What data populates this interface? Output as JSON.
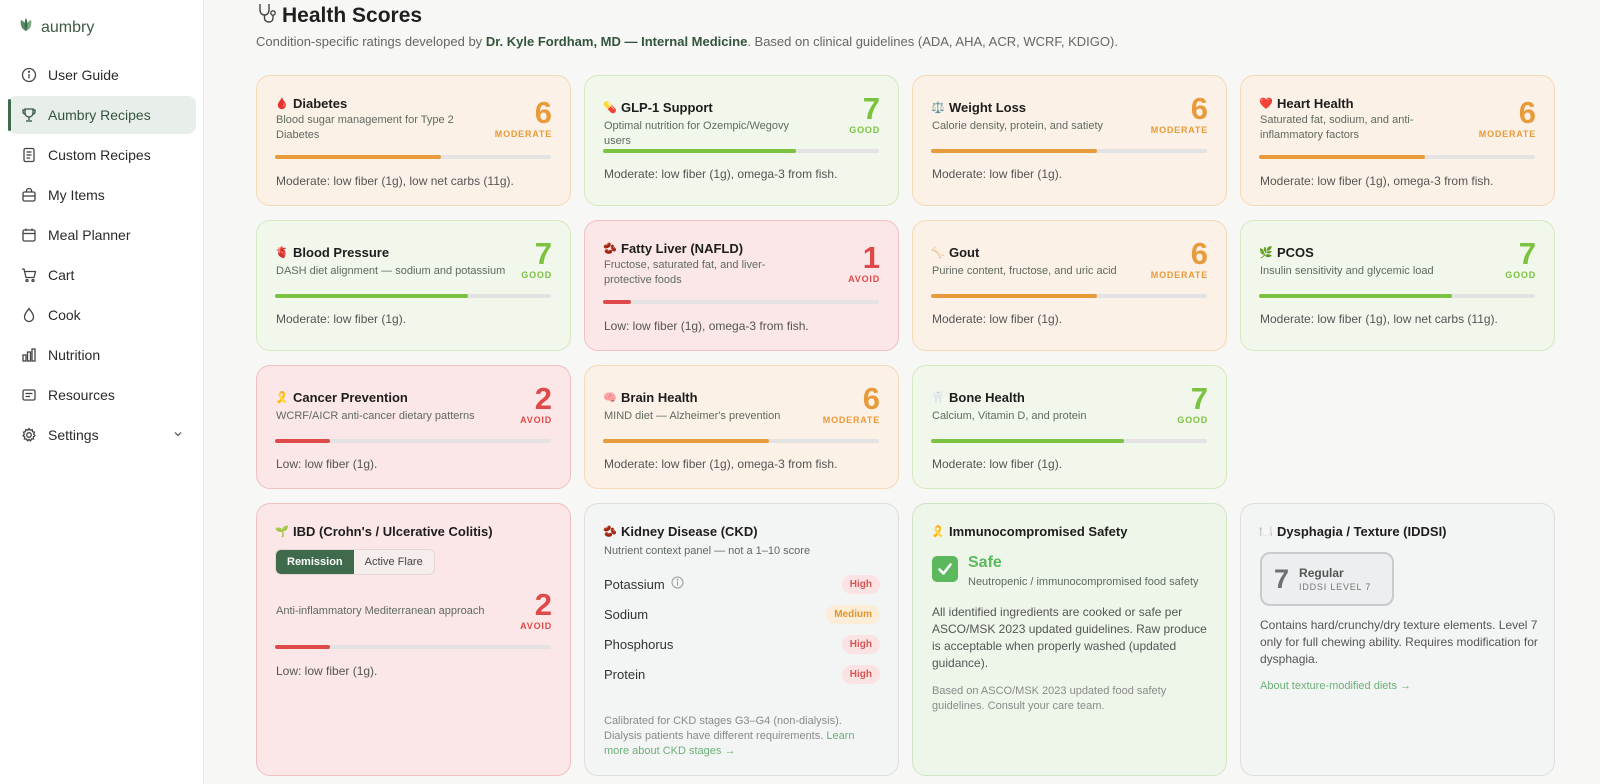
{
  "brand": {
    "name": "aumbry",
    "icon": "leaf-icon"
  },
  "sidebar": {
    "items": [
      {
        "label": "User Guide",
        "icon": "info-circle-icon"
      },
      {
        "label": "Aumbry Recipes",
        "icon": "trophy-icon"
      },
      {
        "label": "Custom Recipes",
        "icon": "document-icon"
      },
      {
        "label": "My Items",
        "icon": "basket-icon"
      },
      {
        "label": "Meal Planner",
        "icon": "calendar-icon"
      },
      {
        "label": "Cart",
        "icon": "cart-icon"
      },
      {
        "label": "Cook",
        "icon": "flame-icon"
      },
      {
        "label": "Nutrition",
        "icon": "bar-chart-icon"
      },
      {
        "label": "Resources",
        "icon": "book-icon"
      },
      {
        "label": "Settings",
        "icon": "gear-icon"
      }
    ],
    "active": "Aumbry Recipes"
  },
  "header": {
    "title": "Health Scores",
    "subtitle_prefix": "Condition-specific ratings developed by ",
    "subtitle_author": "Dr. Kyle Fordham, MD — Internal Medicine",
    "subtitle_suffix": ". Based on clinical guidelines (ADA, AHA, ACR, WCRF, KDIGO)."
  },
  "colors": {
    "moderate": "#e89b3a",
    "good": "#7cc241",
    "avoid": "#de4a4a",
    "safe": "#5cb85c",
    "brand": "#3f6b4c"
  },
  "cards": {
    "diabetes": {
      "emoji": "🩸",
      "title": "Diabetes",
      "desc": "Blood sugar management for Type 2 Diabetes",
      "score": "6",
      "rating": "MODERATE",
      "fill": 0.6,
      "note": "Moderate: low fiber (1g), low net carbs (11g)."
    },
    "glp1": {
      "emoji": "💊",
      "title": "GLP-1 Support",
      "desc": "Optimal nutrition for Ozempic/Wegovy users",
      "score": "7",
      "rating": "GOOD",
      "fill": 0.7,
      "note": "Moderate: low fiber (1g), omega-3 from fish."
    },
    "weight": {
      "emoji": "⚖️",
      "title": "Weight Loss",
      "desc": "Calorie density, protein, and satiety",
      "score": "6",
      "rating": "MODERATE",
      "fill": 0.6,
      "note": "Moderate: low fiber (1g)."
    },
    "heart": {
      "emoji": "❤️",
      "title": "Heart Health",
      "desc": "Saturated fat, sodium, and anti-inflammatory factors",
      "score": "6",
      "rating": "MODERATE",
      "fill": 0.6,
      "note": "Moderate: low fiber (1g), omega-3 from fish."
    },
    "bp": {
      "emoji": "🫀",
      "title": "Blood Pressure",
      "desc": "DASH diet alignment — sodium and potassium",
      "score": "7",
      "rating": "GOOD",
      "fill": 0.7,
      "note": "Moderate: low fiber (1g)."
    },
    "liver": {
      "emoji": "🫘",
      "title": "Fatty Liver (NAFLD)",
      "desc": "Fructose, saturated fat, and liver-protective foods",
      "score": "1",
      "rating": "AVOID",
      "fill": 0.1,
      "note": "Low: low fiber (1g), omega-3 from fish."
    },
    "gout": {
      "emoji": "🦴",
      "title": "Gout",
      "desc": "Purine content, fructose, and uric acid",
      "score": "6",
      "rating": "MODERATE",
      "fill": 0.6,
      "note": "Moderate: low fiber (1g)."
    },
    "pcos": {
      "emoji": "🌿",
      "title": "PCOS",
      "desc": "Insulin sensitivity and glycemic load",
      "score": "7",
      "rating": "GOOD",
      "fill": 0.7,
      "note": "Moderate: low fiber (1g), low net carbs (11g)."
    },
    "cancer": {
      "emoji": "🎗️",
      "title": "Cancer Prevention",
      "desc": "WCRF/AICR anti-cancer dietary patterns",
      "score": "2",
      "rating": "AVOID",
      "fill": 0.2,
      "note": "Low: low fiber (1g)."
    },
    "brain": {
      "emoji": "🧠",
      "title": "Brain Health",
      "desc": "MIND diet — Alzheimer's prevention",
      "score": "6",
      "rating": "MODERATE",
      "fill": 0.6,
      "note": "Moderate: low fiber (1g), omega-3 from fish."
    },
    "bone": {
      "emoji": "🦷",
      "title": "Bone Health",
      "desc": "Calcium, Vitamin D, and protein",
      "score": "7",
      "rating": "GOOD",
      "fill": 0.7,
      "note": "Moderate: low fiber (1g)."
    },
    "ibd": {
      "emoji": "🌱",
      "title": "IBD (Crohn's / Ulcerative Colitis)",
      "toggle_on": "Remission",
      "toggle_off": "Active Flare",
      "desc": "Anti-inflammatory Mediterranean approach",
      "score": "2",
      "rating": "AVOID",
      "fill": 0.2,
      "note": "Low: low fiber (1g)."
    }
  },
  "ckd": {
    "emoji": "🫘",
    "title": "Kidney Disease (CKD)",
    "desc": "Nutrient context panel — not a 1–10 score",
    "rows": [
      {
        "name": "Potassium",
        "level": "High"
      },
      {
        "name": "Sodium",
        "level": "Medium"
      },
      {
        "name": "Phosphorus",
        "level": "High"
      },
      {
        "name": "Protein",
        "level": "High"
      }
    ],
    "footnote": "Calibrated for CKD stages G3–G4 (non-dialysis). Dialysis patients have different requirements. ",
    "footnote_link": "Learn more about CKD stages →"
  },
  "immuno": {
    "emoji": "🎗️",
    "title": "Immunocompromised Safety",
    "status": "Safe",
    "sub": "Neutropenic / immunocompromised food safety",
    "body": "All identified ingredients are cooked or safe per ASCO/MSK 2023 updated guidelines. Raw produce is acceptable when properly washed (updated guidance).",
    "footnote": "Based on ASCO/MSK 2023 updated food safety guidelines. Consult your care team."
  },
  "dysphagia": {
    "emoji": "🍽️",
    "title": "Dysphagia / Texture (IDDSI)",
    "level_num": "7",
    "level_name": "Regular",
    "level_label": "IDDSI LEVEL 7",
    "body": "Contains hard/crunchy/dry texture elements. Level 7 only for full chewing ability. Requires modification for dysphagia.",
    "link": "About texture-modified diets →"
  }
}
